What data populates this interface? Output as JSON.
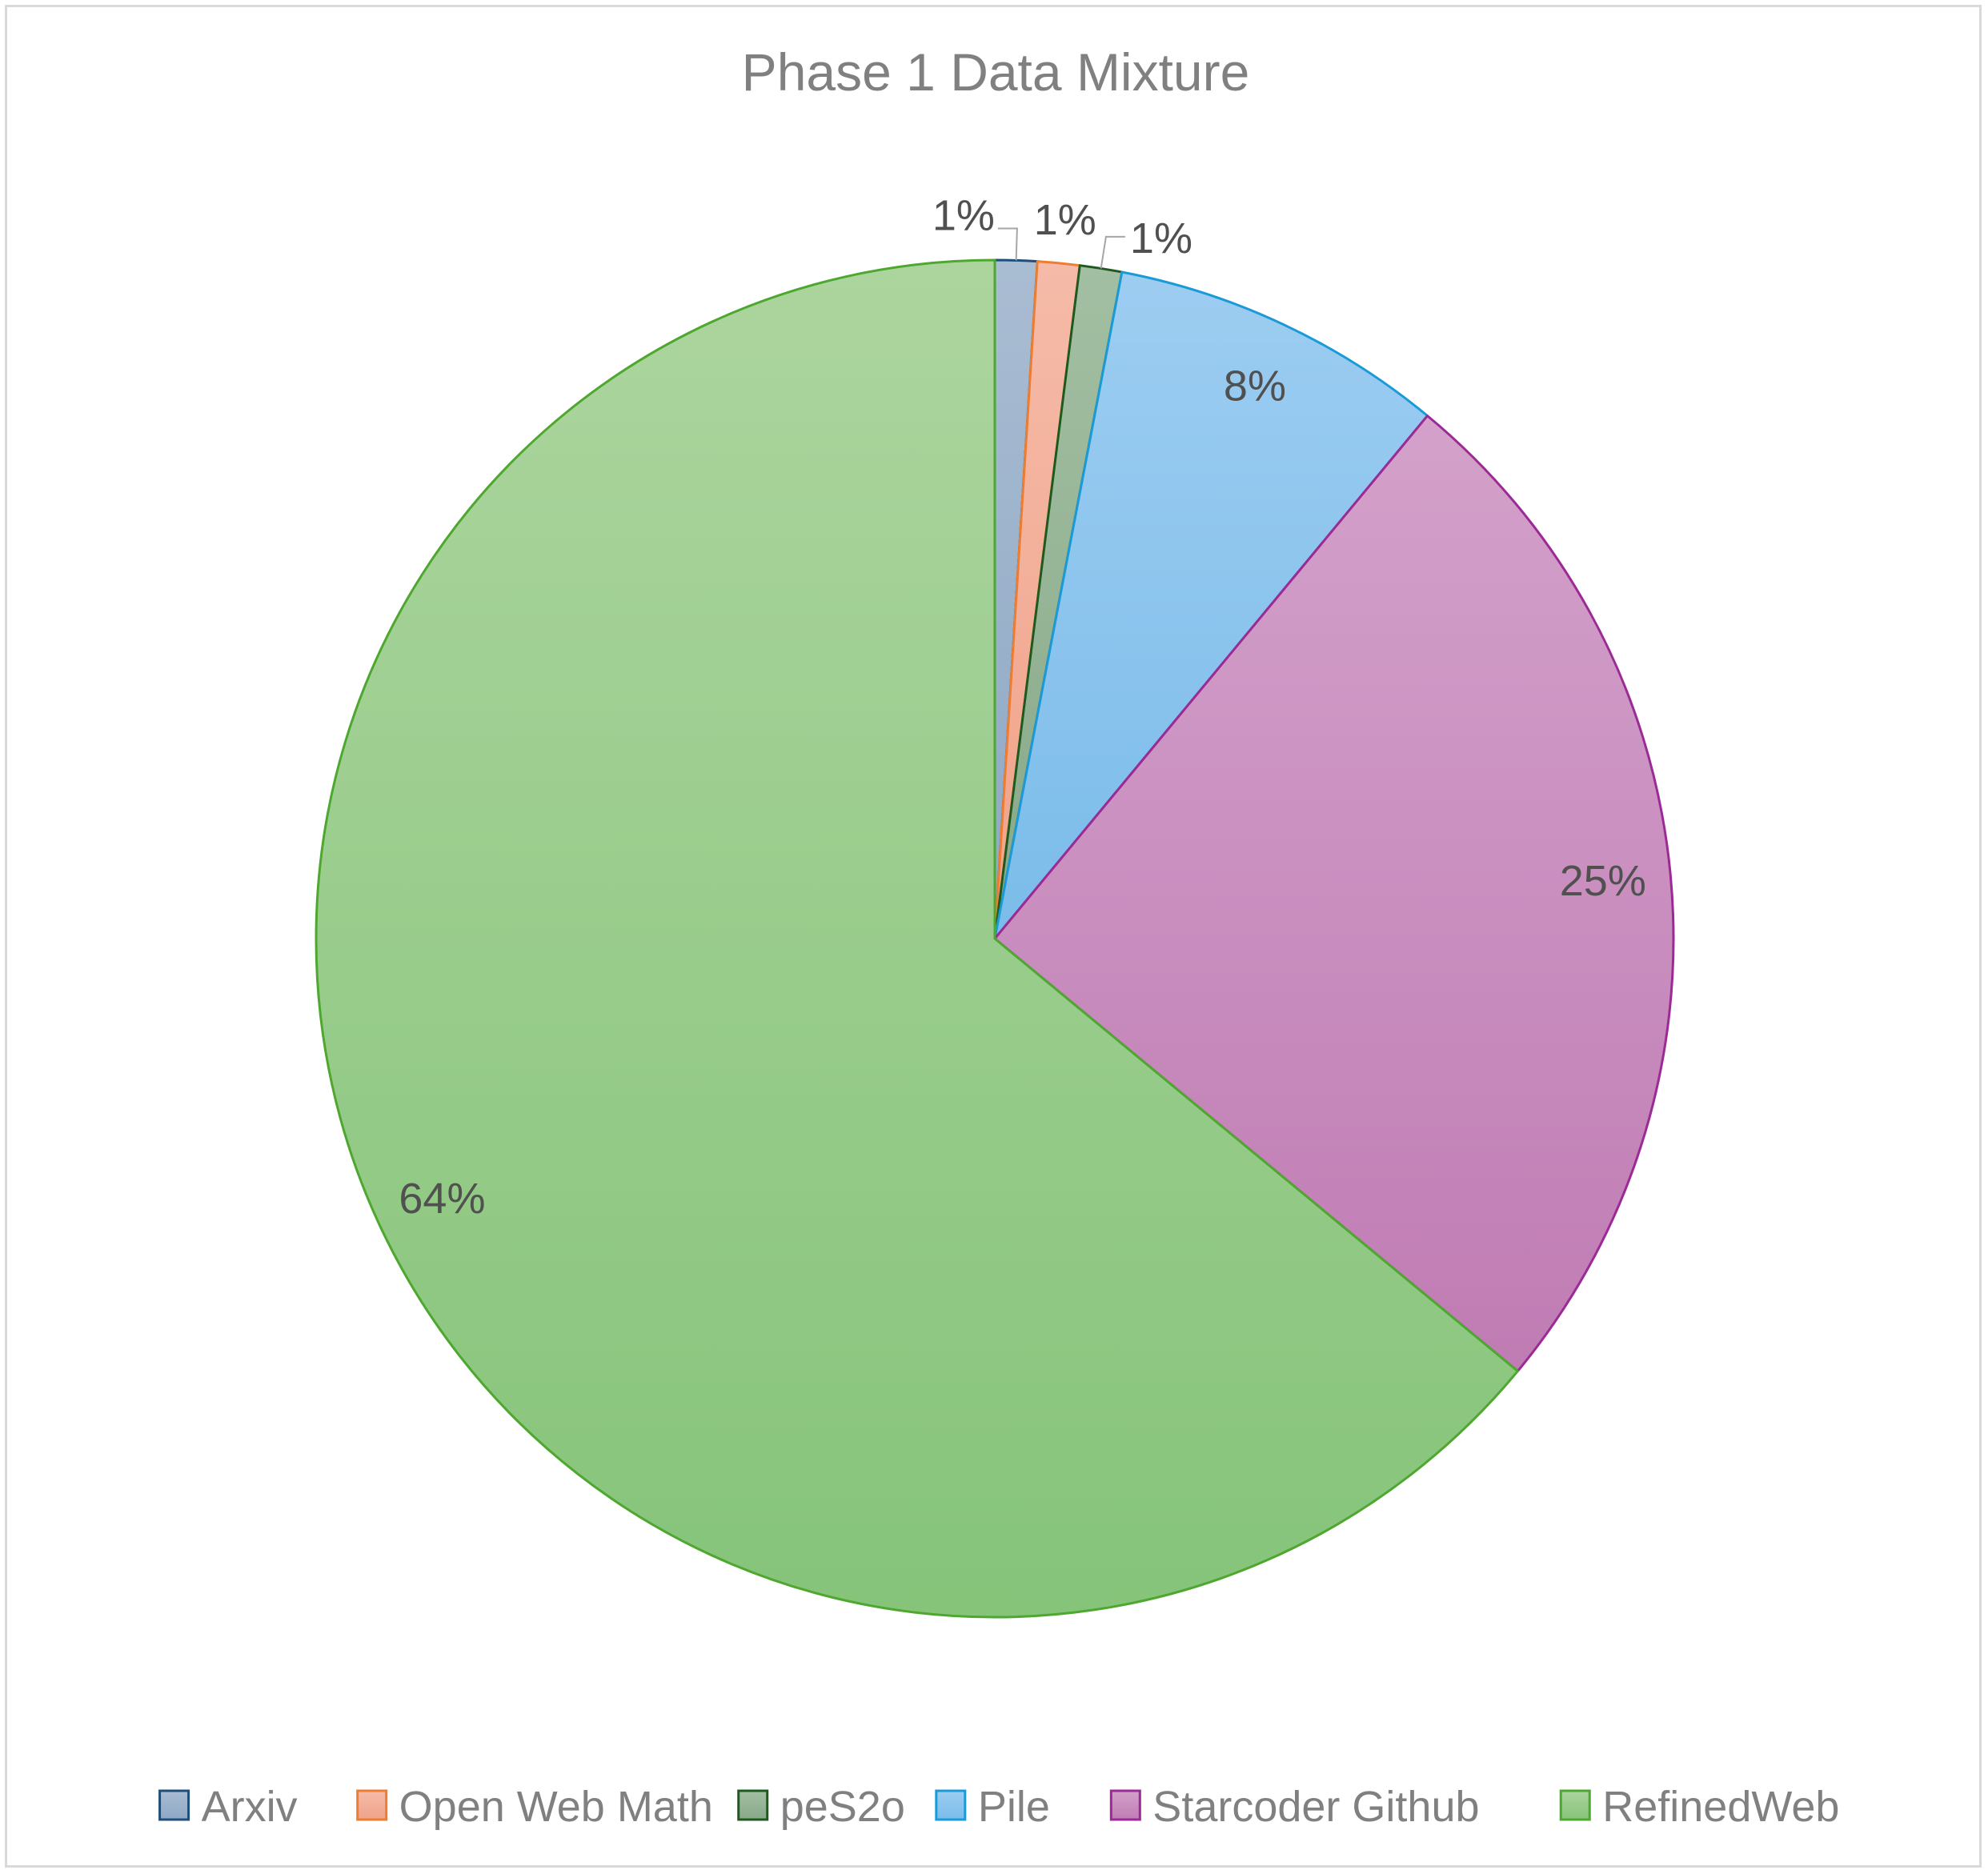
{
  "chart_data": {
    "type": "pie",
    "title": "Phase 1 Data Mixture",
    "start_angle_deg": 0,
    "direction": "clockwise",
    "legend_position": "bottom",
    "categories": [
      "Arxiv",
      "Open Web Math",
      "peS2o",
      "Pile",
      "Starcoder Github",
      "RefinedWeb"
    ],
    "values": [
      1,
      1,
      1,
      8,
      25,
      64
    ],
    "labels": [
      "1%",
      "1%",
      "1%",
      "8%",
      "25%",
      "64%"
    ],
    "colors": {
      "fill_top": [
        "#a9bcd2",
        "#f5bba8",
        "#a3bfa3",
        "#9dcdf1",
        "#d3a1ca",
        "#acd59e"
      ],
      "fill_bottom": [
        "#8ea8c5",
        "#f0a289",
        "#88a888",
        "#7bbcea",
        "#c07cb4",
        "#86c47a"
      ],
      "edge": [
        "#1f4e79",
        "#ed7d31",
        "#1e5a1e",
        "#1b9ad8",
        "#9c2a96",
        "#4ea72e"
      ]
    }
  }
}
